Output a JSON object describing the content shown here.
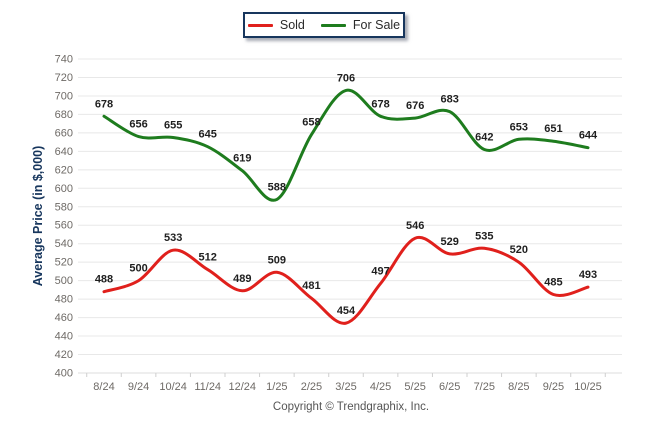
{
  "legend": {
    "items": [
      {
        "label": "Sold",
        "color": "#e0201c"
      },
      {
        "label": "For Sale",
        "color": "#1e7c1e"
      }
    ]
  },
  "footer_text": "Copyright © Trendgraphix, Inc.",
  "colors": {
    "sold_line": "#e0201c",
    "for_sale_line": "#1e7c1e",
    "axis_title": "#17365d",
    "grid": "#e8e8e8",
    "tick_text": "#6e6a66",
    "value_label_text": "#1f1f1f",
    "legend_border": "#17365d"
  },
  "chart_data": {
    "type": "line",
    "title": "",
    "xlabel": "",
    "ylabel": "Average Price (in $,000)",
    "categories": [
      "8/24",
      "9/24",
      "10/24",
      "11/24",
      "12/24",
      "1/25",
      "2/25",
      "3/25",
      "4/25",
      "5/25",
      "6/25",
      "7/25",
      "8/25",
      "9/25",
      "10/25"
    ],
    "series": [
      {
        "name": "Sold",
        "color": "#e0201c",
        "values": [
          488,
          500,
          533,
          512,
          489,
          509,
          481,
          454,
          497,
          546,
          529,
          535,
          520,
          485,
          493
        ]
      },
      {
        "name": "For Sale",
        "color": "#1e7c1e",
        "values": [
          678,
          656,
          655,
          645,
          619,
          588,
          658,
          706,
          678,
          676,
          683,
          642,
          653,
          651,
          644
        ]
      }
    ],
    "ylim": [
      400,
      740
    ],
    "ytick_step": 20,
    "grid": "horizontal",
    "smooth": true,
    "point_value_labels": true,
    "legend_position": "top-center"
  }
}
